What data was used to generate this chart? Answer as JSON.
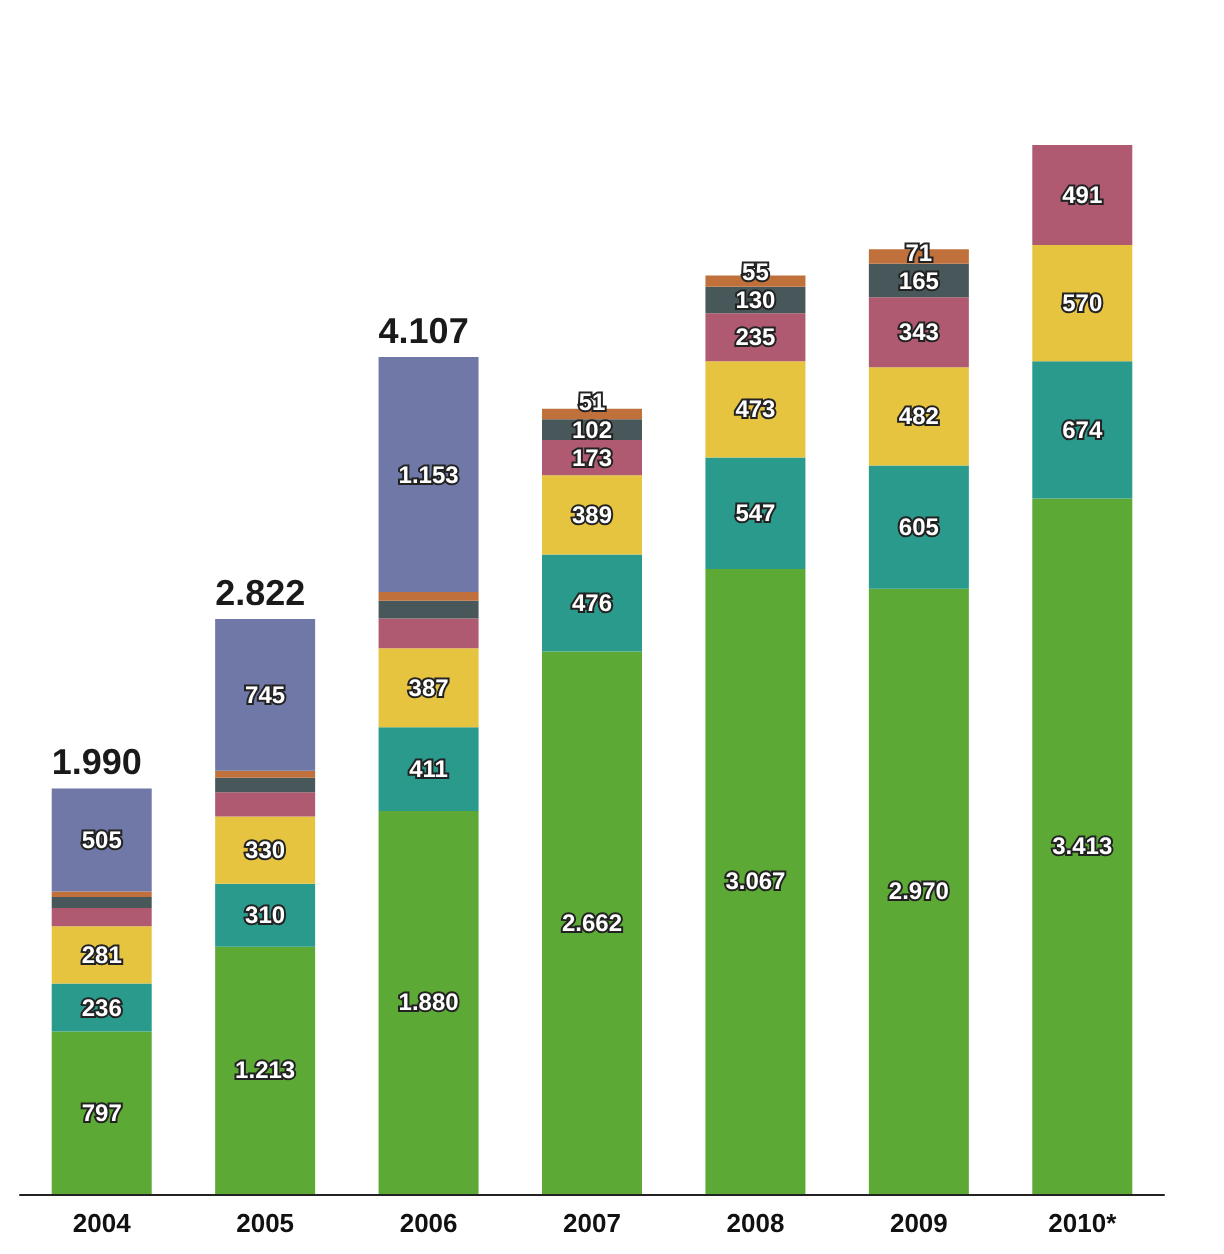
{
  "chart_data": {
    "type": "bar",
    "stacked": true,
    "categories": [
      "2004",
      "2005",
      "2006",
      "2007",
      "2008",
      "2009",
      "2010*"
    ],
    "series": [
      {
        "color": "#5caa35",
        "values": [
          797,
          1213,
          1880,
          2662,
          3067,
          2970,
          3413
        ],
        "value_labels": [
          "797",
          "1.213",
          "1.880",
          "2.662",
          "3.067",
          "2.970",
          "3.413"
        ]
      },
      {
        "color": "#2a9a8c",
        "values": [
          236,
          310,
          411,
          476,
          547,
          605,
          674
        ],
        "value_labels": [
          "236",
          "310",
          "411",
          "476",
          "547",
          "605",
          "674"
        ]
      },
      {
        "color": "#e6c440",
        "values": [
          281,
          330,
          387,
          389,
          473,
          482,
          570
        ],
        "value_labels": [
          "281",
          "330",
          "387",
          "389",
          "473",
          "482",
          "570"
        ]
      },
      {
        "color": "#b05a72",
        "values": [
          90,
          118,
          146,
          173,
          235,
          343,
          491
        ],
        "value_labels": [
          null,
          null,
          null,
          "173",
          "235",
          "343",
          "491"
        ]
      },
      {
        "color": "#48585a",
        "values": [
          54,
          71,
          87,
          102,
          130,
          165,
          null
        ],
        "value_labels": [
          null,
          null,
          null,
          "102",
          "130",
          "165",
          null
        ]
      },
      {
        "color": "#c0703a",
        "values": [
          27,
          35,
          43,
          51,
          55,
          71,
          null
        ],
        "value_labels": [
          null,
          null,
          null,
          "51",
          "55",
          "71",
          null
        ]
      },
      {
        "color": "#6f78a6",
        "values": [
          505,
          745,
          1153,
          null,
          null,
          null,
          null
        ],
        "value_labels": [
          "505",
          "745",
          "1.153",
          null,
          null,
          null,
          null
        ]
      }
    ],
    "totals": [
      "1.990",
      "2.822",
      "4.107",
      null,
      null,
      null,
      null
    ]
  }
}
